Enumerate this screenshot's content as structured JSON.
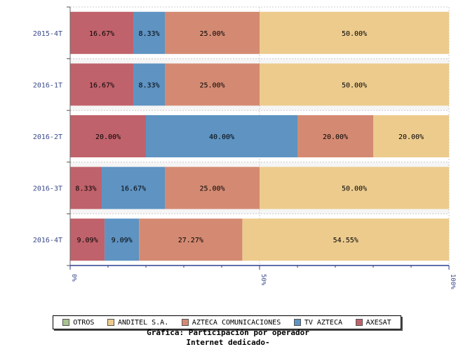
{
  "chart_data": {
    "type": "bar",
    "orientation": "horizontal",
    "stacked": true,
    "percent": true,
    "title": "Gráfica: Participación por operador",
    "subtitle": "Internet dedicado-",
    "categories": [
      "2015-4T",
      "2016-1T",
      "2016-2T",
      "2016-3T",
      "2016-4T"
    ],
    "xlim": [
      0,
      100
    ],
    "xticks": [
      "0%",
      "50%",
      "100%"
    ],
    "grid": true,
    "legend_position": "bottom",
    "legend_order": [
      "OTROS",
      "ANDITEL S.A.",
      "AZTECA COMUNICACIONES",
      "TV AZTECA",
      "AXESAT"
    ],
    "series": [
      {
        "name": "AXESAT",
        "color": "#c0626b",
        "values": [
          16.67,
          16.67,
          20.0,
          8.33,
          9.09
        ],
        "labels": [
          "16.67%",
          "16.67%",
          "20.00%",
          "8.33%",
          "9.09%"
        ]
      },
      {
        "name": "TV AZTECA",
        "color": "#5e93c2",
        "values": [
          8.33,
          8.33,
          40.0,
          16.67,
          9.09
        ],
        "labels": [
          "8.33%",
          "8.33%",
          "40.00%",
          "16.67%",
          "9.09%"
        ]
      },
      {
        "name": "AZTECA COMUNICACIONES",
        "color": "#d48a72",
        "values": [
          25.0,
          25.0,
          20.0,
          25.0,
          27.27
        ],
        "labels": [
          "25.00%",
          "25.00%",
          "20.00%",
          "25.00%",
          "27.27%"
        ]
      },
      {
        "name": "ANDITEL S.A.",
        "color": "#eccb8d",
        "values": [
          50.0,
          50.0,
          20.0,
          50.0,
          54.55
        ],
        "labels": [
          "50.00%",
          "50.00%",
          "20.00%",
          "50.00%",
          "54.55%"
        ]
      },
      {
        "name": "OTROS",
        "color": "#a8c290",
        "values": [
          0,
          0,
          0,
          0,
          0
        ],
        "labels": [
          "",
          "",
          "",
          "",
          ""
        ]
      }
    ]
  }
}
